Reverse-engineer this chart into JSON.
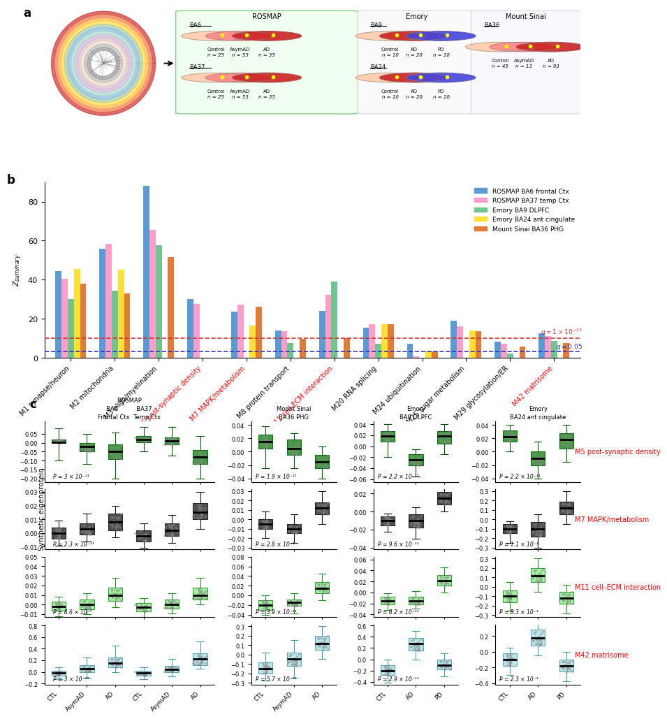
{
  "panel_b": {
    "categories": [
      "M1 synapse/neuron",
      "M2 mitochondria",
      "M3 oligo/myelination",
      "M5 post-synaptic density",
      "M7 MAPK/metabolism",
      "M8 protein transport",
      "M11 cell-ECM interaction",
      "M20 RNA splicing",
      "M24 ubiquitination",
      "M25 sugar metabolism",
      "M29 glycosylation/ER",
      "M42 matrisome"
    ],
    "red_labels": [
      "M5 post-synaptic density",
      "M7 MAPK/metabolism",
      "M11 cell-ECM interaction",
      "M42 matrisome"
    ],
    "series": {
      "ROSMAP BA6 frontal Ctx": {
        "color": "#5B9BD5",
        "values": [
          44.5,
          56.0,
          88.0,
          30.0,
          23.5,
          14.0,
          24.0,
          15.5,
          7.0,
          19.0,
          8.0,
          12.5
        ]
      },
      "ROSMAP BA37 temp Ctx": {
        "color": "#FF9EC8",
        "values": [
          40.5,
          58.5,
          65.5,
          27.5,
          27.0,
          13.5,
          32.0,
          17.0,
          0.5,
          16.0,
          7.0,
          11.0
        ]
      },
      "Emory BA9 DLPFC": {
        "color": "#70C490",
        "values": [
          30.0,
          34.5,
          57.5,
          0.0,
          0.0,
          7.5,
          39.0,
          7.0,
          0.0,
          0.0,
          2.0,
          8.5
        ]
      },
      "Emory BA24 ant cingulate": {
        "color": "#FFE033",
        "values": [
          45.5,
          45.0,
          0.0,
          0.0,
          16.5,
          0.0,
          0.0,
          17.0,
          3.5,
          14.0,
          0.0,
          0.0
        ]
      },
      "Mount Sinai BA36 PHG": {
        "color": "#E07B39",
        "values": [
          38.0,
          33.0,
          51.5,
          0.0,
          26.0,
          9.5,
          10.0,
          17.0,
          3.0,
          13.5,
          5.5,
          7.5
        ]
      }
    },
    "ylim": [
      0,
      90
    ],
    "yticks": [
      0,
      20,
      40,
      60,
      80
    ],
    "ylabel": "Z_summary",
    "q_line1": 10.0,
    "q_line1_label": "q = 1 × 10⁻²³",
    "q_line1_color": "#CC3333",
    "q_line2": 3.0,
    "q_line2_label": "q = 0.05",
    "q_line2_color": "#3333BB"
  },
  "panel_c": {
    "row_labels": [
      "M5 post-synaptic density",
      "M7 MAPK/metabolism",
      "M11 cell–ECM interaction",
      "M42 matrisome"
    ],
    "col_headers": {
      "col1": {
        "title1": "ROSMAP",
        "title2": "BA6          BA37",
        "title3": "Frontal Ctx  Temp Ctx"
      },
      "col2": {
        "title1": "Mount Sinai",
        "title2": "BA36 PHG"
      },
      "col3": {
        "title1": "Emory",
        "title2": "BA9 DLPFC"
      },
      "col4": {
        "title1": "Emory",
        "title2": "BA24 ant cingulate"
      }
    },
    "boxes": {
      "M5_col1": {
        "groups": [
          "CTL",
          "AsymAD",
          "AD",
          "CTL",
          "AsymAD",
          "AD"
        ],
        "colors": [
          "#228B22",
          "#228B22",
          "#228B22",
          "#228B22",
          "#228B22",
          "#228B22"
        ],
        "medians": [
          0.005,
          -0.02,
          -0.05,
          0.02,
          0.01,
          -0.08
        ],
        "q1": [
          0.0,
          -0.05,
          -0.09,
          0.005,
          -0.01,
          -0.12
        ],
        "q3": [
          0.02,
          0.0,
          -0.01,
          0.04,
          0.03,
          -0.04
        ],
        "whislo": [
          -0.1,
          -0.12,
          -0.2,
          -0.05,
          -0.07,
          -0.2
        ],
        "whishi": [
          0.08,
          0.05,
          0.06,
          0.09,
          0.09,
          0.04
        ],
        "ylim": [
          -0.22,
          0.12
        ],
        "yticks": [
          -0.2,
          -0.15,
          -0.1,
          -0.05,
          0,
          0.05
        ],
        "pval": "P = 3 × 10⁻¹¹",
        "ylabel": "",
        "col_idx": 0
      },
      "M5_col2": {
        "groups": [
          "CTL",
          "AsymAD",
          "AD"
        ],
        "colors": [
          "#228B22",
          "#228B22",
          "#228B22"
        ],
        "medians": [
          0.015,
          0.005,
          -0.015
        ],
        "q1": [
          0.005,
          -0.005,
          -0.025
        ],
        "q3": [
          0.025,
          0.018,
          -0.005
        ],
        "whislo": [
          -0.025,
          -0.025,
          -0.04
        ],
        "whishi": [
          0.038,
          0.028,
          0.008
        ],
        "ylim": [
          -0.045,
          0.045
        ],
        "yticks": [
          -0.04,
          -0.02,
          0,
          0.02,
          0.04
        ],
        "pval": "P = 1.9 × 10⁻¹¹",
        "col_idx": 1
      },
      "M5_col3": {
        "groups": [
          "CTL",
          "AD",
          "PD"
        ],
        "colors": [
          "#228B22",
          "#228B22",
          "#228B22"
        ],
        "medians": [
          0.018,
          -0.025,
          0.018
        ],
        "q1": [
          0.008,
          -0.035,
          0.005
        ],
        "q3": [
          0.028,
          -0.015,
          0.028
        ],
        "whislo": [
          -0.02,
          -0.055,
          -0.015
        ],
        "whishi": [
          0.04,
          -0.005,
          0.04
        ],
        "ylim": [
          -0.065,
          0.045
        ],
        "yticks": [
          -0.06,
          -0.04,
          -0.02,
          0,
          0.02,
          0.04
        ],
        "pval": "P = 2.2 × 10⁻¹¹",
        "col_idx": 2
      },
      "M5_col4": {
        "groups": [
          "CTL",
          "AD",
          "PD"
        ],
        "colors": [
          "#228B22",
          "#228B22",
          "#228B22"
        ],
        "medians": [
          0.022,
          -0.01,
          0.018
        ],
        "q1": [
          0.015,
          -0.02,
          0.005
        ],
        "q3": [
          0.032,
          0.0,
          0.028
        ],
        "whislo": [
          0.0,
          -0.04,
          -0.015
        ],
        "whishi": [
          0.04,
          0.015,
          0.04
        ],
        "ylim": [
          -0.045,
          0.045
        ],
        "yticks": [
          -0.04,
          -0.02,
          0,
          0.02,
          0.04
        ],
        "pval": "P = 2.2 × 10⁻¹¹",
        "col_idx": 3
      },
      "M7_col1": {
        "groups": [
          "CTL",
          "AsymAD",
          "AD",
          "CTL",
          "AsymAD",
          "AD"
        ],
        "colors": [
          "#333333",
          "#333333",
          "#333333",
          "#333333",
          "#333333",
          "#333333"
        ],
        "medians": [
          0.0,
          0.003,
          0.008,
          -0.002,
          0.002,
          0.015
        ],
        "q1": [
          -0.004,
          -0.001,
          0.002,
          -0.006,
          -0.002,
          0.01
        ],
        "q3": [
          0.004,
          0.007,
          0.014,
          0.002,
          0.007,
          0.022
        ],
        "whislo": [
          -0.009,
          -0.006,
          -0.003,
          -0.011,
          -0.007,
          0.003
        ],
        "whishi": [
          0.009,
          0.014,
          0.02,
          0.007,
          0.013,
          0.03
        ],
        "ylim": [
          -0.012,
          0.032
        ],
        "yticks": [
          -0.01,
          0,
          0.01,
          0.02,
          0.03
        ],
        "pval": "P = 2.3 × 10⁻¹¹",
        "col_idx": 0
      },
      "M7_col2": {
        "groups": [
          "CTL",
          "AsymAD",
          "AD"
        ],
        "colors": [
          "#333333",
          "#333333",
          "#333333"
        ],
        "medians": [
          -0.005,
          -0.01,
          0.012
        ],
        "q1": [
          -0.01,
          -0.015,
          0.005
        ],
        "q3": [
          0.0,
          -0.005,
          0.018
        ],
        "whislo": [
          -0.02,
          -0.025,
          -0.005
        ],
        "whishi": [
          0.008,
          0.005,
          0.03
        ],
        "ylim": [
          -0.032,
          0.032
        ],
        "yticks": [
          -0.03,
          -0.02,
          -0.01,
          0,
          0.01,
          0.02,
          0.03
        ],
        "pval": "P = 2.8 × 10⁻¹",
        "col_idx": 1
      },
      "M7_col3": {
        "groups": [
          "CTL",
          "AD",
          "PD"
        ],
        "colors": [
          "#333333",
          "#333333",
          "#333333"
        ],
        "medians": [
          -0.01,
          -0.01,
          0.015
        ],
        "q1": [
          -0.015,
          -0.018,
          0.008
        ],
        "q3": [
          -0.005,
          -0.003,
          0.022
        ],
        "whislo": [
          -0.022,
          -0.03,
          0.0
        ],
        "whishi": [
          -0.002,
          0.005,
          0.03
        ],
        "ylim": [
          -0.042,
          0.025
        ],
        "yticks": [
          -0.04,
          -0.02,
          0,
          0.02
        ],
        "pval": "P = 9.6 × 10⁻¹¹",
        "col_idx": 2
      },
      "M7_col4": {
        "groups": [
          "CTL",
          "AD",
          "PD"
        ],
        "colors": [
          "#333333",
          "#333333",
          "#333333"
        ],
        "medians": [
          -0.1,
          -0.1,
          0.12
        ],
        "q1": [
          -0.15,
          -0.18,
          0.05
        ],
        "q3": [
          -0.05,
          -0.03,
          0.19
        ],
        "whislo": [
          -0.25,
          -0.3,
          -0.05
        ],
        "whishi": [
          -0.02,
          0.05,
          0.3
        ],
        "ylim": [
          -0.32,
          0.32
        ],
        "yticks": [
          -0.3,
          -0.2,
          -0.1,
          0,
          0.1,
          0.2,
          0.3
        ],
        "pval": "P = 1.1 × 10⁻¹",
        "col_idx": 3
      },
      "M11_col1": {
        "groups": [
          "CTL",
          "AsymAD",
          "AD",
          "CTL",
          "AsymAD",
          "AD"
        ],
        "colors": [
          "#90EE90",
          "#90EE90",
          "#90EE90",
          "#90EE90",
          "#90EE90",
          "#90EE90"
        ],
        "medians": [
          -0.002,
          0.0,
          0.01,
          -0.003,
          0.0,
          0.01
        ],
        "q1": [
          -0.006,
          -0.005,
          0.004,
          -0.007,
          -0.004,
          0.005
        ],
        "q3": [
          0.003,
          0.005,
          0.018,
          0.002,
          0.005,
          0.018
        ],
        "whislo": [
          -0.012,
          -0.01,
          -0.003,
          -0.013,
          -0.009,
          0.0
        ],
        "whishi": [
          0.008,
          0.012,
          0.028,
          0.007,
          0.012,
          0.028
        ],
        "ylim": [
          -0.013,
          0.05
        ],
        "yticks": [
          -0.01,
          0,
          0.01,
          0.02,
          0.03,
          0.04,
          0.05
        ],
        "pval": "P = 8.6 × 10⁻⁷",
        "col_idx": 0
      },
      "M11_col2": {
        "groups": [
          "CTL",
          "AsymAD",
          "AD"
        ],
        "colors": [
          "#90EE90",
          "#90EE90",
          "#90EE90"
        ],
        "medians": [
          -0.02,
          -0.015,
          0.015
        ],
        "q1": [
          -0.03,
          -0.022,
          0.005
        ],
        "q3": [
          -0.01,
          -0.008,
          0.028
        ],
        "whislo": [
          -0.04,
          -0.038,
          -0.01
        ],
        "whishi": [
          0.0,
          0.005,
          0.045
        ],
        "ylim": [
          -0.045,
          0.08
        ],
        "yticks": [
          -0.04,
          -0.02,
          0,
          0.02,
          0.04,
          0.06,
          0.08
        ],
        "pval": "P = 3.9 × 10⁻¹¹",
        "col_idx": 1
      },
      "M11_col3": {
        "groups": [
          "CTL",
          "AD",
          "PD"
        ],
        "colors": [
          "#90EE90",
          "#90EE90",
          "#90EE90"
        ],
        "medians": [
          -0.015,
          -0.015,
          0.022
        ],
        "q1": [
          -0.022,
          -0.022,
          0.012
        ],
        "q3": [
          -0.008,
          -0.008,
          0.032
        ],
        "whislo": [
          -0.032,
          -0.03,
          0.0
        ],
        "whishi": [
          -0.002,
          0.002,
          0.045
        ],
        "ylim": [
          -0.045,
          0.065
        ],
        "yticks": [
          -0.04,
          -0.02,
          0,
          0.02,
          0.04,
          0.06
        ],
        "pval": "P = 6.2 × 10⁻¹¹",
        "col_idx": 2
      },
      "M11_col4": {
        "groups": [
          "CTL",
          "AD",
          "PD"
        ],
        "colors": [
          "#90EE90",
          "#90EE90",
          "#90EE90"
        ],
        "medians": [
          -0.1,
          0.12,
          -0.12
        ],
        "q1": [
          -0.16,
          0.05,
          -0.18
        ],
        "q3": [
          -0.04,
          0.2,
          -0.05
        ],
        "whislo": [
          -0.25,
          -0.05,
          -0.28
        ],
        "whishi": [
          0.05,
          0.3,
          0.02
        ],
        "ylim": [
          -0.32,
          0.32
        ],
        "yticks": [
          -0.3,
          -0.2,
          -0.1,
          0,
          0.1,
          0.2,
          0.3
        ],
        "pval": "P = 8.3 × 10⁻¹",
        "col_idx": 3
      },
      "M42_col1": {
        "groups": [
          "CTL",
          "AsymAD",
          "AD",
          "CTL",
          "AsymAD",
          "AD"
        ],
        "colors": [
          "#B0E0E6",
          "#B0E0E6",
          "#B0E0E6",
          "#B0E0E6",
          "#B0E0E6",
          "#B0E0E6"
        ],
        "medians": [
          -0.02,
          0.05,
          0.15,
          -0.02,
          0.04,
          0.22
        ],
        "q1": [
          -0.06,
          0.0,
          0.08,
          -0.06,
          0.0,
          0.12
        ],
        "q3": [
          0.02,
          0.12,
          0.25,
          0.02,
          0.1,
          0.32
        ],
        "whislo": [
          -0.12,
          -0.1,
          0.0,
          -0.12,
          -0.08,
          0.05
        ],
        "whishi": [
          0.08,
          0.25,
          0.45,
          0.08,
          0.22,
          0.52
        ],
        "ylim": [
          -0.22,
          0.82
        ],
        "yticks": [
          -0.2,
          0,
          0.2,
          0.4,
          0.6,
          0.8
        ],
        "pval": "P = 3 × 10⁻¹³",
        "col_idx": 0
      },
      "M42_col2": {
        "groups": [
          "CTL",
          "AsymAD",
          "AD"
        ],
        "colors": [
          "#B0E0E6",
          "#B0E0E6",
          "#B0E0E6"
        ],
        "medians": [
          -0.15,
          -0.05,
          0.12
        ],
        "q1": [
          -0.2,
          -0.12,
          0.05
        ],
        "q3": [
          -0.08,
          0.02,
          0.2
        ],
        "whislo": [
          -0.28,
          -0.25,
          -0.05
        ],
        "whishi": [
          0.02,
          0.15,
          0.3
        ],
        "ylim": [
          -0.32,
          0.32
        ],
        "yticks": [
          -0.3,
          -0.2,
          -0.1,
          0,
          0.1,
          0.2,
          0.3
        ],
        "pval": "P = 5.7 × 10⁻¹¹",
        "col_idx": 1
      },
      "M42_col3": {
        "groups": [
          "CTL",
          "AD",
          "PD"
        ],
        "colors": [
          "#B0E0E6",
          "#333333",
          "#B0E0E6"
        ],
        "medians": [
          -0.2,
          0.28,
          -0.1
        ],
        "q1": [
          -0.28,
          0.15,
          -0.18
        ],
        "q3": [
          -0.1,
          0.38,
          0.0
        ],
        "whislo": [
          -0.42,
          0.0,
          -0.3
        ],
        "whishi": [
          0.0,
          0.5,
          0.1
        ],
        "ylim": [
          -0.45,
          0.62
        ],
        "yticks": [
          -0.4,
          -0.2,
          0,
          0.2,
          0.4,
          0.6
        ],
        "pval": "P = 2.9 × 10⁻¹¹",
        "col_idx": 2
      },
      "M42_col4": {
        "groups": [
          "CTL",
          "AD",
          "PD"
        ],
        "colors": [
          "#333333",
          "#B0E0E6",
          "#333333"
        ],
        "medians": [
          -0.1,
          0.18,
          -0.18
        ],
        "q1": [
          -0.18,
          0.08,
          -0.25
        ],
        "q3": [
          -0.02,
          0.28,
          -0.1
        ],
        "whislo": [
          -0.3,
          -0.05,
          -0.38
        ],
        "whishi": [
          0.05,
          0.4,
          0.0
        ],
        "ylim": [
          -0.42,
          0.35
        ],
        "yticks": [
          -0.4,
          -0.2,
          0,
          0.2
        ],
        "pval": "P = 2.3 × 10⁻¹",
        "col_idx": 3
      }
    }
  }
}
